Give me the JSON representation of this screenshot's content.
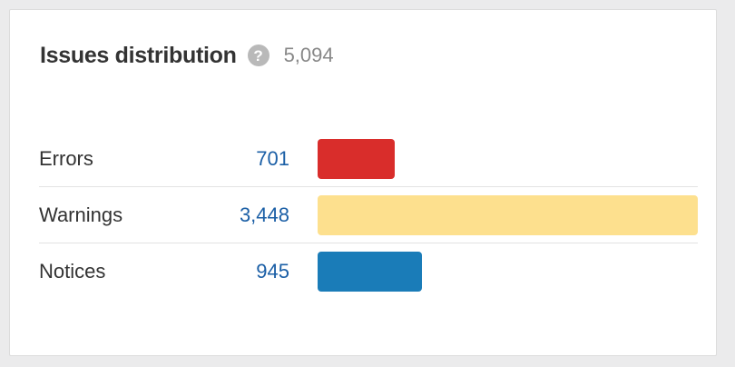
{
  "widget": {
    "title": "Issues distribution",
    "help_icon": "question-circle-icon",
    "total": "5,094"
  },
  "rows": [
    {
      "label": "Errors",
      "value": "701",
      "count": 701,
      "color": "#d92d2b"
    },
    {
      "label": "Warnings",
      "value": "3,448",
      "count": 3448,
      "color": "#fde08e"
    },
    {
      "label": "Notices",
      "value": "945",
      "count": 945,
      "color": "#1a7cb8"
    }
  ]
}
